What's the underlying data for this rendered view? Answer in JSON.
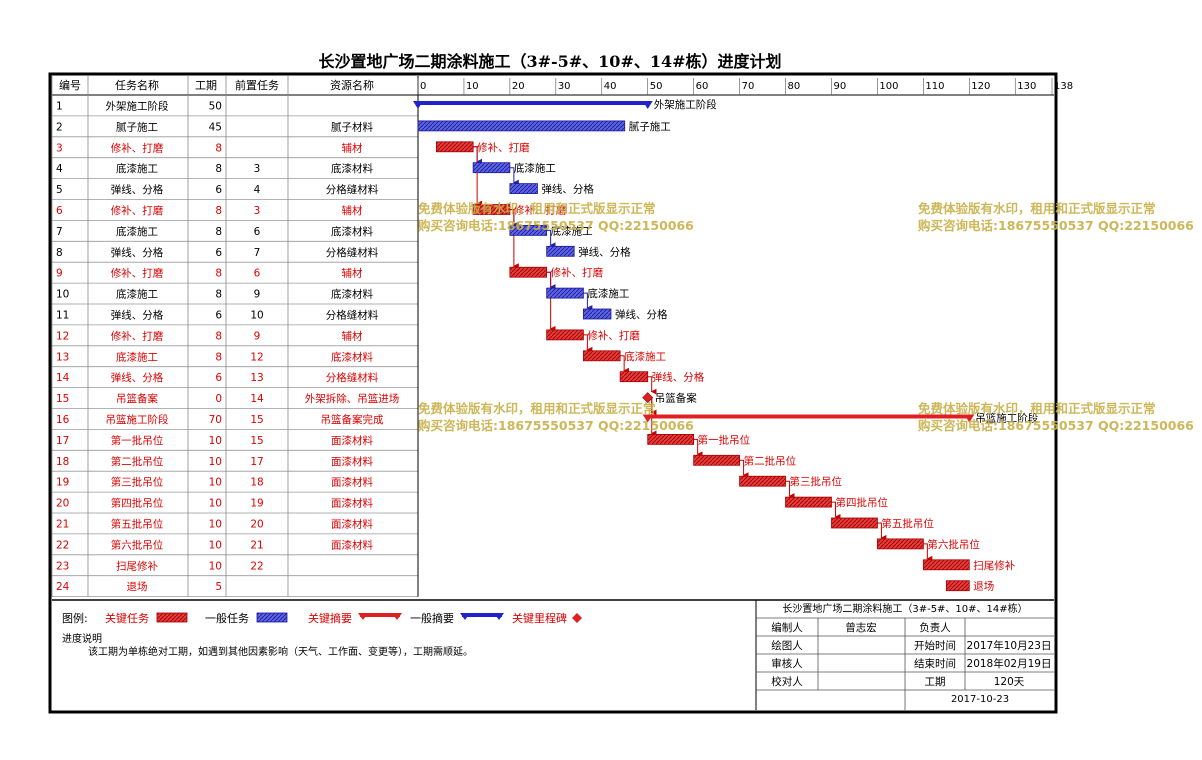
{
  "title": "长沙置地广场二期涂料施工（3#-5#、10#、14#栋）进度计划",
  "columns": {
    "id": "编号",
    "name": "任务名称",
    "duration": "工期",
    "pred": "前置任务",
    "resource": "资源名称"
  },
  "colors": {
    "critical": "#e02020",
    "normal": "#2222cc",
    "normal_bar": "#4a52d6",
    "critical_text": "#dd0000",
    "watermark": "#c8b048"
  },
  "chart_data": {
    "type": "gantt",
    "axis": {
      "min": 0,
      "max": 138,
      "ticks": [
        0,
        10,
        20,
        30,
        40,
        50,
        60,
        70,
        80,
        90,
        100,
        110,
        120,
        130,
        138
      ],
      "unit": "天"
    },
    "tasks": [
      {
        "id": "1",
        "name": "外架施工阶段",
        "duration": 50,
        "pred": "",
        "resource": "",
        "start": 0,
        "kind": "summary",
        "critical": false,
        "label": "外架施工阶段"
      },
      {
        "id": "2",
        "name": "腻子施工",
        "duration": 45,
        "pred": "",
        "resource": "腻子材料",
        "start": 0,
        "kind": "task",
        "critical": false,
        "label": "腻子施工"
      },
      {
        "id": "3",
        "name": "修补、打磨",
        "duration": 8,
        "pred": "",
        "resource": "辅材",
        "start": 4,
        "kind": "task",
        "critical": true,
        "label": "修补、打磨"
      },
      {
        "id": "4",
        "name": "底漆施工",
        "duration": 8,
        "pred": "3",
        "resource": "底漆材料",
        "start": 12,
        "kind": "task",
        "critical": false,
        "label": "底漆施工"
      },
      {
        "id": "5",
        "name": "弹线、分格",
        "duration": 6,
        "pred": "4",
        "resource": "分格缝材料",
        "start": 20,
        "kind": "task",
        "critical": false,
        "label": "弹线、分格"
      },
      {
        "id": "6",
        "name": "修补、打磨",
        "duration": 8,
        "pred": "3",
        "resource": "辅材",
        "start": 12,
        "kind": "task",
        "critical": true,
        "label": "修补、打磨"
      },
      {
        "id": "7",
        "name": "底漆施工",
        "duration": 8,
        "pred": "6",
        "resource": "底漆材料",
        "start": 20,
        "kind": "task",
        "critical": false,
        "label": "底漆施工"
      },
      {
        "id": "8",
        "name": "弹线、分格",
        "duration": 6,
        "pred": "7",
        "resource": "分格缝材料",
        "start": 28,
        "kind": "task",
        "critical": false,
        "label": "弹线、分格"
      },
      {
        "id": "9",
        "name": "修补、打磨",
        "duration": 8,
        "pred": "6",
        "resource": "辅材",
        "start": 20,
        "kind": "task",
        "critical": true,
        "label": "修补、打磨"
      },
      {
        "id": "10",
        "name": "底漆施工",
        "duration": 8,
        "pred": "9",
        "resource": "底漆材料",
        "start": 28,
        "kind": "task",
        "critical": false,
        "label": "底漆施工"
      },
      {
        "id": "11",
        "name": "弹线、分格",
        "duration": 6,
        "pred": "10",
        "resource": "分格缝材料",
        "start": 36,
        "kind": "task",
        "critical": false,
        "label": "弹线、分格"
      },
      {
        "id": "12",
        "name": "修补、打磨",
        "duration": 8,
        "pred": "9",
        "resource": "辅材",
        "start": 28,
        "kind": "task",
        "critical": true,
        "label": "修补、打磨"
      },
      {
        "id": "13",
        "name": "底漆施工",
        "duration": 8,
        "pred": "12",
        "resource": "底漆材料",
        "start": 36,
        "kind": "task",
        "critical": true,
        "label": "底漆施工"
      },
      {
        "id": "14",
        "name": "弹线、分格",
        "duration": 6,
        "pred": "13",
        "resource": "分格缝材料",
        "start": 44,
        "kind": "task",
        "critical": true,
        "label": "弹线、分格"
      },
      {
        "id": "15",
        "name": "吊篮备案",
        "duration": 0,
        "pred": "14",
        "resource": "外架拆除、吊篮进场",
        "start": 50,
        "kind": "milestone",
        "critical": true,
        "label": "吊篮备案"
      },
      {
        "id": "16",
        "name": "吊篮施工阶段",
        "duration": 70,
        "pred": "15",
        "resource": "吊篮备案完成",
        "start": 50,
        "kind": "summary",
        "critical": true,
        "label": "吊篮施工阶段"
      },
      {
        "id": "17",
        "name": "第一批吊位",
        "duration": 10,
        "pred": "15",
        "resource": "面漆材料",
        "start": 50,
        "kind": "task",
        "critical": true,
        "label": "第一批吊位"
      },
      {
        "id": "18",
        "name": "第二批吊位",
        "duration": 10,
        "pred": "17",
        "resource": "面漆材料",
        "start": 60,
        "kind": "task",
        "critical": true,
        "label": "第二批吊位"
      },
      {
        "id": "19",
        "name": "第三批吊位",
        "duration": 10,
        "pred": "18",
        "resource": "面漆材料",
        "start": 70,
        "kind": "task",
        "critical": true,
        "label": "第三批吊位"
      },
      {
        "id": "20",
        "name": "第四批吊位",
        "duration": 10,
        "pred": "19",
        "resource": "面漆材料",
        "start": 80,
        "kind": "task",
        "critical": true,
        "label": "第四批吊位"
      },
      {
        "id": "21",
        "name": "第五批吊位",
        "duration": 10,
        "pred": "20",
        "resource": "面漆材料",
        "start": 90,
        "kind": "task",
        "critical": true,
        "label": "第五批吊位"
      },
      {
        "id": "22",
        "name": "第六批吊位",
        "duration": 10,
        "pred": "21",
        "resource": "面漆材料",
        "start": 100,
        "kind": "task",
        "critical": true,
        "label": "第六批吊位"
      },
      {
        "id": "23",
        "name": "扫尾修补",
        "duration": 10,
        "pred": "22",
        "resource": "",
        "start": 110,
        "kind": "task",
        "critical": true,
        "label": "扫尾修补"
      },
      {
        "id": "24",
        "name": "退场",
        "duration": 5,
        "pred": "",
        "resource": "",
        "start": 115,
        "kind": "task",
        "critical": true,
        "label": "退场"
      }
    ]
  },
  "legend": {
    "label": "图例:",
    "items": [
      {
        "label": "关键任务",
        "kind": "critical-task"
      },
      {
        "label": "一般任务",
        "kind": "normal-task"
      },
      {
        "label": "关键摘要",
        "kind": "critical-summary"
      },
      {
        "label": "一般摘要",
        "kind": "normal-summary"
      },
      {
        "label": "关键里程碑",
        "kind": "milestone"
      }
    ]
  },
  "notes": {
    "heading": "进度说明",
    "text": "该工期为单栋绝对工期，如遇到其他因素影响（天气、工作面、变更等），工期需顺延。"
  },
  "info": {
    "title": "长沙置地广场二期涂料施工（3#-5#、10#、14#栋）",
    "rows": [
      [
        "编制人",
        "曾志宏",
        "负责人",
        ""
      ],
      [
        "绘图人",
        "",
        "开始时间",
        "2017年10月23日"
      ],
      [
        "审核人",
        "",
        "结束时间",
        "2018年02月19日"
      ],
      [
        "校对人",
        "",
        "工期",
        "120天"
      ]
    ],
    "date": "2017-10-23"
  },
  "watermark": {
    "line1": "免费体验版有水印，租用和正式版显示正常",
    "line2": "购买咨询电话:18675550537 QQ:22150066"
  }
}
